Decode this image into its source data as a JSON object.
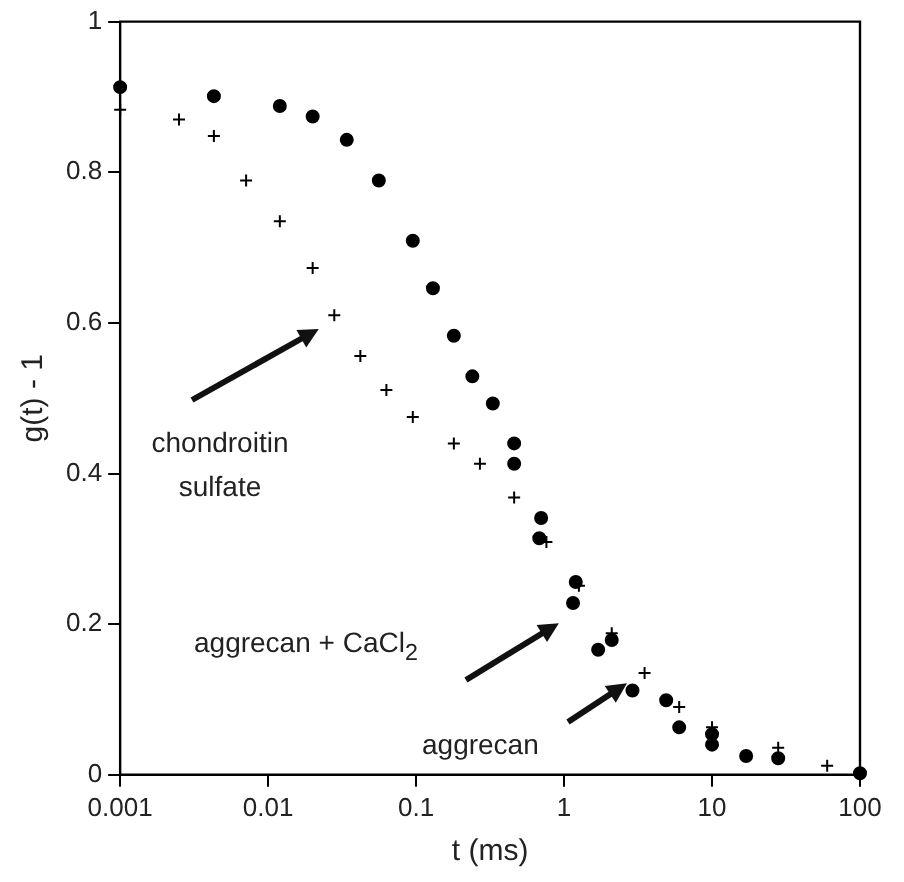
{
  "chart_data": {
    "type": "scatter",
    "xlabel": "t (ms)",
    "ylabel": "g(t) - 1",
    "log": "x",
    "xlim": [
      0.001,
      100
    ],
    "xticks": [
      0.001,
      0.01,
      0.1,
      1,
      10,
      100
    ],
    "ylim": [
      0,
      1
    ],
    "yticks": [
      0,
      0.2,
      0.4,
      0.6,
      0.8,
      1
    ],
    "grid": false,
    "legend": false,
    "series": [
      {
        "color": "#000000",
        "marker": "cross",
        "x": [
          0.001,
          0.0025,
          0.0043,
          0.0071,
          0.012,
          0.02,
          0.028,
          0.042,
          0.063,
          0.095,
          0.18,
          0.27,
          0.46,
          0.76,
          1.26,
          2.1,
          3.5,
          6,
          10,
          28,
          60
        ],
        "values": [
          0.883,
          0.87,
          0.848,
          0.789,
          0.735,
          0.673,
          0.61,
          0.556,
          0.511,
          0.475,
          0.44,
          0.413,
          0.368,
          0.309,
          0.251,
          0.188,
          0.135,
          0.09,
          0.063,
          0.036,
          0.012
        ]
      },
      {
        "color": "#000000",
        "marker": "circle",
        "x": [
          0.001,
          0.0043,
          0.012,
          0.02,
          0.034,
          0.056,
          0.095,
          0.13,
          0.18,
          0.24,
          0.33,
          0.46,
          0.7,
          1.2,
          2.1,
          4.9,
          10,
          28,
          100
        ],
        "values": [
          0.913,
          0.901,
          0.888,
          0.874,
          0.843,
          0.789,
          0.709,
          0.646,
          0.583,
          0.529,
          0.493,
          0.44,
          0.341,
          0.256,
          0.179,
          0.099,
          0.054,
          0.022,
          0.002
        ]
      },
      {
        "color": "#000000",
        "marker": "circle",
        "x": [
          0.46,
          0.68,
          1.15,
          1.7,
          2.9,
          6,
          10,
          17
        ],
        "values": [
          0.413,
          0.314,
          0.228,
          0.166,
          0.112,
          0.063,
          0.04,
          0.025
        ]
      }
    ],
    "annotations": [
      "chondroitin sulfate",
      "aggrecan + CaCl$_{2}$",
      "aggrecan"
    ]
  }
}
